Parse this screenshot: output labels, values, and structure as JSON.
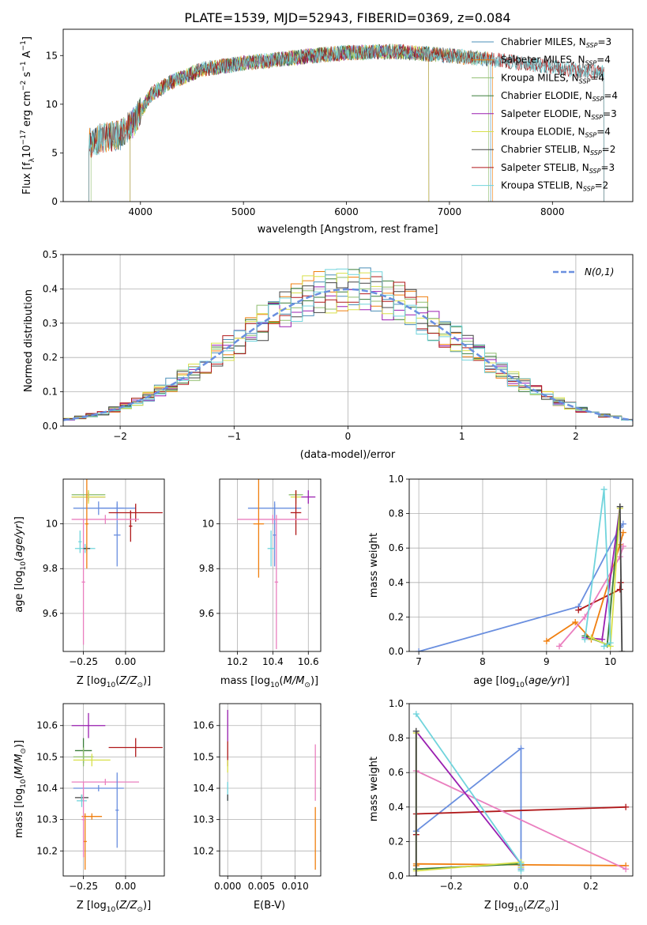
{
  "figure_title": "PLATE=1539, MJD=52943, FIBERID=0369, z=0.084",
  "colors": [
    "#4b8fb8",
    "#f07f0f",
    "#8fbe6f",
    "#3a7d3a",
    "#9a1fb0",
    "#d8e04a",
    "#444444",
    "#b0181a",
    "#70d4dc",
    "#6a8fdf",
    "#ea7fbf",
    "#d4c01a",
    "#a0a0a0"
  ],
  "chart_data": [
    {
      "id": "spectrum",
      "type": "line",
      "xlabel": "wavelength [Angstrom, rest frame]",
      "ylabel": "Flux [f_λ 10^-17 erg cm^-2 s^-1 A^-1]",
      "xlim": [
        3250,
        8780
      ],
      "ylim": [
        0,
        17.7
      ],
      "xticks": [
        4000,
        5000,
        6000,
        7000,
        8000
      ],
      "yticks": [
        0,
        5,
        10,
        15
      ],
      "grid": false,
      "legend_position": "top-right",
      "continuum": {
        "x": [
          3500,
          3650,
          3800,
          3950,
          4100,
          4300,
          4600,
          5000,
          5500,
          6000,
          6500,
          7000,
          7500,
          8000,
          8500
        ],
        "y": [
          6.0,
          6.6,
          6.8,
          8.3,
          11.0,
          12.3,
          13.6,
          14.2,
          14.8,
          15.3,
          15.4,
          15.0,
          14.5,
          13.8,
          13.2
        ]
      },
      "series": [
        {
          "name": "Chabrier MILES, N_SSP=3",
          "color": "#4b8fb8",
          "range": [
            3500,
            7400
          ]
        },
        {
          "name": "Salpeter MILES, N_SSP=4",
          "color": "#f07f0f",
          "range": [
            3500,
            7420
          ]
        },
        {
          "name": "Kroupa MILES, N_SSP=4",
          "color": "#8fbe6f",
          "range": [
            3520,
            7380
          ]
        },
        {
          "name": "Chabrier ELODIE, N_SSP=4",
          "color": "#3a7d3a",
          "range": [
            3900,
            6800
          ]
        },
        {
          "name": "Salpeter ELODIE, N_SSP=3",
          "color": "#9a1fb0",
          "range": [
            3900,
            6800
          ]
        },
        {
          "name": "Kroupa ELODIE, N_SSP=4",
          "color": "#d8e04a",
          "range": [
            3900,
            6800
          ]
        },
        {
          "name": "Chabrier STELIB, N_SSP=2",
          "color": "#444444",
          "range": [
            3500,
            8500
          ]
        },
        {
          "name": "Salpeter STELIB, N_SSP=3",
          "color": "#b0181a",
          "range": [
            3500,
            8500
          ]
        },
        {
          "name": "Kroupa STELIB, N_SSP=2",
          "color": "#70d4dc",
          "range": [
            3500,
            8500
          ]
        }
      ]
    },
    {
      "id": "residuals",
      "type": "histogram",
      "xlabel": "(data-model)/error",
      "ylabel": "Normed distribution",
      "xlim": [
        -2.5,
        2.5
      ],
      "ylim": [
        0,
        0.5
      ],
      "xticks": [
        -2,
        -1,
        0,
        1,
        2
      ],
      "yticks": [
        0.0,
        0.1,
        0.2,
        0.3,
        0.4,
        0.5
      ],
      "grid": true,
      "legend_position": "top-right",
      "normal_curve": {
        "label": "N(0,1)",
        "color": "#6a8fdf",
        "mean": 0,
        "sigma": 1
      }
    },
    {
      "id": "age_vs_Z",
      "type": "scatter",
      "xlabel": "Z [log10(Z/Z⊙)]",
      "ylabel": "age  [log10(age/yr)]",
      "xlim": [
        -0.37,
        0.23
      ],
      "ylim": [
        9.43,
        10.2
      ],
      "xticks": [
        -0.25,
        0.0
      ],
      "xticklabels": [
        "−0.25",
        "0.00"
      ],
      "yticks": [
        9.6,
        9.8,
        10.0
      ],
      "grid": true,
      "points": [
        {
          "x": -0.22,
          "y": 10.13,
          "xerr": 0.1,
          "yerr": 0.02,
          "color": "#8fbe6f"
        },
        {
          "x": -0.22,
          "y": 10.12,
          "xerr": 0.1,
          "yerr": 0.02,
          "color": "#9a1fb0"
        },
        {
          "x": -0.22,
          "y": 10.12,
          "xerr": 0.1,
          "yerr": 0.03,
          "color": "#d8e04a"
        },
        {
          "x": -0.16,
          "y": 10.07,
          "xerr": 0.15,
          "yerr": 0.03,
          "color": "#6a8fdf"
        },
        {
          "x": -0.05,
          "y": 10.07,
          "xerr": 0.11,
          "yerr": 0.03,
          "color": "#6a8fdf"
        },
        {
          "x": -0.05,
          "y": 9.95,
          "xerr": 0.02,
          "yerr": 0.14,
          "color": "#6a8fdf"
        },
        {
          "x": 0.06,
          "y": 10.05,
          "xerr": 0.16,
          "yerr": 0.04,
          "color": "#b0181a"
        },
        {
          "x": 0.03,
          "y": 9.99,
          "xerr": 0.01,
          "yerr": 0.07,
          "color": "#b0181a"
        },
        {
          "x": -0.12,
          "y": 10.02,
          "xerr": 0.2,
          "yerr": 0.02,
          "color": "#ea7fbf"
        },
        {
          "x": -0.25,
          "y": 9.74,
          "xerr": 0.01,
          "yerr": 0.28,
          "color": "#ea7fbf"
        },
        {
          "x": -0.24,
          "y": 9.89,
          "xerr": 0.06,
          "yerr": 0.02,
          "color": "#70d4dc"
        },
        {
          "x": -0.27,
          "y": 9.92,
          "xerr": 0.01,
          "yerr": 0.05,
          "color": "#70d4dc"
        },
        {
          "x": -0.23,
          "y": 9.89,
          "xerr": 0.02,
          "yerr": 0.01,
          "color": "#444444"
        },
        {
          "x": -0.23,
          "y": 10.0,
          "xerr": 0.01,
          "yerr": 0.2,
          "color": "#f07f0f"
        }
      ]
    },
    {
      "id": "age_vs_mass",
      "type": "scatter",
      "xlabel": "mass [log10(M/M⊙)]",
      "ylabel": "",
      "xlim": [
        10.1,
        10.67
      ],
      "ylim": [
        9.43,
        10.2
      ],
      "xticks": [
        10.2,
        10.4,
        10.6
      ],
      "yticks": [
        9.6,
        9.8,
        10.0
      ],
      "grid": true,
      "points": [
        {
          "x": 10.53,
          "y": 10.13,
          "xerr": 0.04,
          "yerr": 0.02,
          "color": "#8fbe6f"
        },
        {
          "x": 10.53,
          "y": 10.12,
          "xerr": 0.03,
          "yerr": 0.03,
          "color": "#d8e04a"
        },
        {
          "x": 10.6,
          "y": 10.12,
          "xerr": 0.04,
          "yerr": 0.03,
          "color": "#9a1fb0"
        },
        {
          "x": 10.41,
          "y": 10.07,
          "xerr": 0.15,
          "yerr": 0.03,
          "color": "#6a8fdf"
        },
        {
          "x": 10.41,
          "y": 9.95,
          "xerr": 0.01,
          "yerr": 0.14,
          "color": "#6a8fdf"
        },
        {
          "x": 10.53,
          "y": 10.05,
          "xerr": 0.03,
          "yerr": 0.1,
          "color": "#b0181a"
        },
        {
          "x": 10.4,
          "y": 10.02,
          "xerr": 0.2,
          "yerr": 0.02,
          "color": "#ea7fbf"
        },
        {
          "x": 10.42,
          "y": 9.74,
          "xerr": 0.01,
          "yerr": 0.3,
          "color": "#ea7fbf"
        },
        {
          "x": 10.32,
          "y": 10.0,
          "xerr": 0.03,
          "yerr": 0.24,
          "color": "#f07f0f"
        },
        {
          "x": 10.39,
          "y": 9.89,
          "xerr": 0.02,
          "yerr": 0.08,
          "color": "#70d4dc"
        }
      ]
    },
    {
      "id": "mass_weight_vs_age",
      "type": "line",
      "xlabel": "age  [log10(age/yr)]",
      "ylabel": "mass weight",
      "xlim": [
        6.85,
        10.35
      ],
      "ylim": [
        0,
        1
      ],
      "xticks": [
        7,
        8,
        9,
        10
      ],
      "yticks": [
        0.0,
        0.2,
        0.4,
        0.6,
        0.8,
        1.0
      ],
      "grid": true,
      "series": [
        {
          "color": "#6a8fdf",
          "x": [
            7.0,
            9.5,
            10.15,
            10.2
          ],
          "y": [
            0.0,
            0.26,
            0.72,
            0.74
          ]
        },
        {
          "color": "#b0181a",
          "x": [
            9.5,
            10.15,
            10.16
          ],
          "y": [
            0.24,
            0.36,
            0.4
          ]
        },
        {
          "color": "#f07f0f",
          "x": [
            9.0,
            9.45,
            9.7,
            10.15,
            10.2
          ],
          "y": [
            0.06,
            0.17,
            0.07,
            0.62,
            0.69
          ]
        },
        {
          "color": "#ea7fbf",
          "x": [
            9.2,
            9.6,
            10.15,
            10.2
          ],
          "y": [
            0.03,
            0.2,
            0.55,
            0.61
          ]
        },
        {
          "color": "#9a1fb0",
          "x": [
            9.6,
            9.87,
            10.15
          ],
          "y": [
            0.08,
            0.07,
            0.84
          ]
        },
        {
          "color": "#3a7d3a",
          "x": [
            9.6,
            9.95,
            10.15
          ],
          "y": [
            0.09,
            0.04,
            0.84
          ]
        },
        {
          "color": "#d8e04a",
          "x": [
            9.7,
            10.0,
            10.15
          ],
          "y": [
            0.08,
            0.03,
            0.83
          ]
        },
        {
          "color": "#70d4dc",
          "x": [
            9.6,
            9.9,
            10.0,
            9.9
          ],
          "y": [
            0.07,
            0.94,
            0.05,
            0.03
          ]
        },
        {
          "color": "#444444",
          "x": [
            10.15,
            10.18
          ],
          "y": [
            0.84,
            0.0
          ]
        }
      ]
    },
    {
      "id": "mass_vs_Z",
      "type": "scatter",
      "xlabel": "Z [log10(Z/Z⊙)]",
      "ylabel": "mass [log10(M/M⊙)]",
      "xlim": [
        -0.37,
        0.23
      ],
      "ylim": [
        10.12,
        10.67
      ],
      "xticks": [
        -0.25,
        0.0
      ],
      "xticklabels": [
        "−0.25",
        "0.00"
      ],
      "yticks": [
        10.2,
        10.3,
        10.4,
        10.5,
        10.6
      ],
      "grid": true,
      "points": [
        {
          "x": -0.22,
          "y": 10.6,
          "xerr": 0.1,
          "yerr": 0.04,
          "color": "#9a1fb0"
        },
        {
          "x": 0.06,
          "y": 10.53,
          "xerr": 0.16,
          "yerr": 0.03,
          "color": "#b0181a"
        },
        {
          "x": -0.25,
          "y": 10.52,
          "xerr": 0.05,
          "yerr": 0.04,
          "color": "#3a7d3a"
        },
        {
          "x": -0.25,
          "y": 10.5,
          "xerr": 0.06,
          "yerr": 0.03,
          "color": "#8fbe6f"
        },
        {
          "x": -0.2,
          "y": 10.49,
          "xerr": 0.11,
          "yerr": 0.02,
          "color": "#d8e04a"
        },
        {
          "x": -0.12,
          "y": 10.42,
          "xerr": 0.2,
          "yerr": 0.01,
          "color": "#ea7fbf"
        },
        {
          "x": -0.16,
          "y": 10.4,
          "xerr": 0.15,
          "yerr": 0.01,
          "color": "#6a8fdf"
        },
        {
          "x": -0.05,
          "y": 10.33,
          "xerr": 0.01,
          "yerr": 0.12,
          "color": "#6a8fdf"
        },
        {
          "x": -0.26,
          "y": 10.37,
          "xerr": 0.04,
          "yerr": 0.01,
          "color": "#444444"
        },
        {
          "x": -0.26,
          "y": 10.36,
          "xerr": 0.03,
          "yerr": 0.02,
          "color": "#70d4dc"
        },
        {
          "x": -0.2,
          "y": 10.31,
          "xerr": 0.06,
          "yerr": 0.01,
          "color": "#f07f0f"
        },
        {
          "x": -0.24,
          "y": 10.23,
          "xerr": 0.01,
          "yerr": 0.09,
          "color": "#f07f0f"
        },
        {
          "x": -0.25,
          "y": 10.3,
          "xerr": 0.01,
          "yerr": 0.12,
          "color": "#ea7fbf"
        }
      ]
    },
    {
      "id": "mass_vs_ebv",
      "type": "scatter",
      "xlabel": "E(B-V)",
      "ylabel": "",
      "xlim": [
        -0.0012,
        0.0138
      ],
      "ylim": [
        10.12,
        10.67
      ],
      "xticks": [
        0.0,
        0.005,
        0.01
      ],
      "xticklabels": [
        "0.000",
        "0.005",
        "0.010"
      ],
      "yticks": [
        10.2,
        10.3,
        10.4,
        10.5,
        10.6
      ],
      "grid": true,
      "points": [
        {
          "x": 0.0,
          "y": 10.6,
          "xerr": 0.0,
          "yerr": 0.05,
          "color": "#9a1fb0"
        },
        {
          "x": 0.0,
          "y": 10.51,
          "xerr": 0.0,
          "yerr": 0.04,
          "color": "#b0181a"
        },
        {
          "x": 0.0,
          "y": 10.47,
          "xerr": 0.0,
          "yerr": 0.02,
          "color": "#d8e04a"
        },
        {
          "x": 0.0,
          "y": 10.39,
          "xerr": 0.0,
          "yerr": 0.03,
          "color": "#70d4dc"
        },
        {
          "x": 0.0,
          "y": 10.37,
          "xerr": 0.0,
          "yerr": 0.01,
          "color": "#444444"
        },
        {
          "x": 0.013,
          "y": 10.45,
          "xerr": 0.0,
          "yerr": 0.09,
          "color": "#ea7fbf"
        },
        {
          "x": 0.013,
          "y": 10.24,
          "xerr": 0.0,
          "yerr": 0.1,
          "color": "#f07f0f"
        }
      ]
    },
    {
      "id": "mass_weight_vs_Z",
      "type": "line",
      "xlabel": "Z [log10(Z/Z⊙)]",
      "ylabel": "mass weight",
      "xlim": [
        -0.32,
        0.32
      ],
      "ylim": [
        0,
        1
      ],
      "xticks": [
        -0.2,
        0.0,
        0.2
      ],
      "xticklabels": [
        "−0.2",
        "0.0",
        "0.2"
      ],
      "yticks": [
        0.0,
        0.2,
        0.4,
        0.6,
        0.8,
        1.0
      ],
      "grid": true,
      "series": [
        {
          "color": "#6a8fdf",
          "x": [
            -0.3,
            0.0,
            0.0,
            0.0
          ],
          "y": [
            0.26,
            0.74,
            0.06,
            0.04
          ]
        },
        {
          "color": "#b0181a",
          "x": [
            -0.3,
            -0.3,
            0.3
          ],
          "y": [
            0.24,
            0.36,
            0.4
          ]
        },
        {
          "color": "#f07f0f",
          "x": [
            -0.3,
            -0.3,
            0.3
          ],
          "y": [
            0.06,
            0.07,
            0.06
          ]
        },
        {
          "color": "#ea7fbf",
          "x": [
            -0.3,
            0.3
          ],
          "y": [
            0.61,
            0.04
          ]
        },
        {
          "color": "#9a1fb0",
          "x": [
            -0.3,
            0.0,
            0.0
          ],
          "y": [
            0.84,
            0.07,
            0.05
          ]
        },
        {
          "color": "#3a7d3a",
          "x": [
            -0.3,
            -0.3,
            0.0
          ],
          "y": [
            0.84,
            0.04,
            0.07
          ]
        },
        {
          "color": "#d8e04a",
          "x": [
            -0.3,
            -0.3,
            0.0,
            0.0
          ],
          "y": [
            0.83,
            0.03,
            0.08,
            0.05
          ]
        },
        {
          "color": "#70d4dc",
          "x": [
            -0.3,
            0.0,
            0.0
          ],
          "y": [
            0.94,
            0.07,
            0.03
          ]
        },
        {
          "color": "#444444",
          "x": [
            -0.3,
            -0.3
          ],
          "y": [
            0.84,
            0.0
          ]
        }
      ]
    }
  ]
}
